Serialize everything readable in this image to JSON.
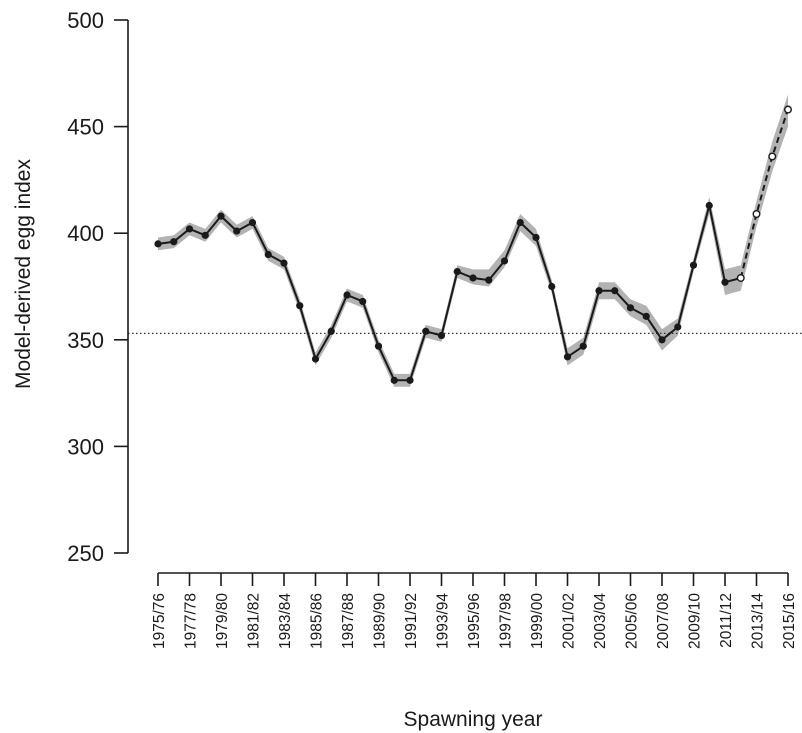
{
  "chart_data": {
    "type": "line",
    "title": "",
    "xlabel": "Spawning year",
    "ylabel": "Model-derived egg index",
    "ylim": [
      250,
      500
    ],
    "y_ticks": [
      250,
      300,
      350,
      400,
      450,
      500
    ],
    "reference_line": 353,
    "x_tick_labels": [
      "1975/76",
      "1977/78",
      "1979/80",
      "1981/82",
      "1983/84",
      "1985/86",
      "1987/88",
      "1989/90",
      "1991/92",
      "1993/94",
      "1995/96",
      "1997/98",
      "1999/00",
      "2001/02",
      "2003/04",
      "2005/06",
      "2007/08",
      "2009/10",
      "2011/12",
      "2013/14",
      "2015/16"
    ],
    "x_tick_positions": [
      1975,
      1977,
      1979,
      1981,
      1983,
      1985,
      1987,
      1989,
      1991,
      1993,
      1995,
      1997,
      1999,
      2001,
      2003,
      2005,
      2007,
      2009,
      2011,
      2013,
      2015
    ],
    "xlim": [
      1975,
      2015
    ],
    "series": [
      {
        "style": "solid-filled-points",
        "color": "#1a1a1a",
        "x": [
          1975,
          1976,
          1977,
          1978,
          1979,
          1980,
          1981,
          1982,
          1983,
          1984,
          1985,
          1986,
          1987,
          1988,
          1989,
          1990,
          1991,
          1992,
          1993,
          1994,
          1995,
          1996,
          1997,
          1998,
          1999,
          2000,
          2001,
          2002,
          2003,
          2004,
          2005,
          2006,
          2007,
          2008,
          2009,
          2010,
          2011,
          2012
        ],
        "y": [
          395,
          396,
          402,
          399,
          408,
          401,
          405,
          390,
          386,
          366,
          341,
          354,
          371,
          368,
          347,
          331,
          331,
          354,
          352,
          382,
          379,
          378,
          387,
          405,
          398,
          375,
          342,
          347,
          373,
          373,
          365,
          361,
          350,
          356,
          385,
          413,
          377,
          379
        ],
        "lower": [
          392,
          393,
          399,
          396,
          405,
          398,
          402,
          387,
          383,
          363,
          338,
          351,
          368,
          365,
          344,
          328,
          328,
          351,
          349,
          379,
          376,
          375,
          384,
          401,
          394,
          372,
          338,
          343,
          369,
          369,
          361,
          357,
          345,
          352,
          382,
          409,
          371,
          373
        ],
        "upper": [
          398,
          399,
          405,
          402,
          411,
          404,
          408,
          393,
          389,
          369,
          344,
          357,
          374,
          371,
          350,
          334,
          334,
          357,
          355,
          385,
          383,
          383,
          392,
          409,
          402,
          378,
          346,
          351,
          377,
          377,
          369,
          366,
          355,
          360,
          388,
          417,
          383,
          385
        ]
      },
      {
        "style": "dashed-open-points",
        "color": "#1a1a1a",
        "x": [
          2012,
          2013,
          2014,
          2015
        ],
        "y": [
          379,
          409,
          436,
          458
        ],
        "lower": [
          373,
          403,
          429,
          450
        ],
        "upper": [
          385,
          415,
          443,
          465
        ]
      }
    ],
    "band_color": "#b3b3b3",
    "grid": false,
    "legend": "none"
  }
}
